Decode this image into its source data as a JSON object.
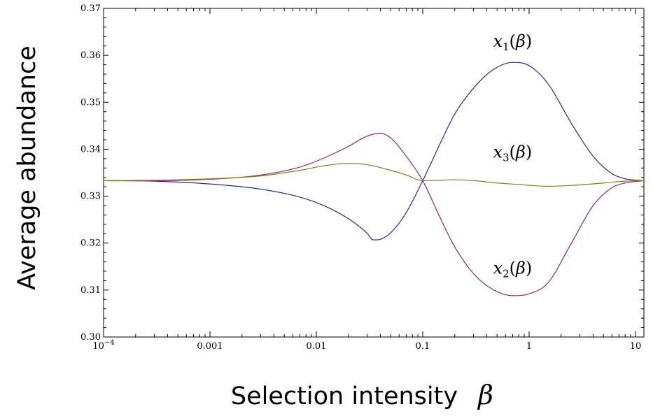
{
  "chart_data": {
    "type": "line",
    "xlabel": "Selection intensity",
    "xlabel_symbol": "β",
    "ylabel": "Average abundance",
    "xscale": "log",
    "xlim": [
      0.0001,
      12
    ],
    "ylim": [
      0.3,
      0.37
    ],
    "grid": false,
    "x_ticks": [
      {
        "value": 0.0001,
        "base": "10",
        "exp": "−4"
      },
      {
        "value": 0.001,
        "label": "0.001"
      },
      {
        "value": 0.01,
        "label": "0.01"
      },
      {
        "value": 0.1,
        "label": "0.1"
      },
      {
        "value": 1,
        "label": "1"
      },
      {
        "value": 10,
        "label": "10"
      }
    ],
    "y_ticks": [
      {
        "value": 0.3,
        "label": "0.30"
      },
      {
        "value": 0.31,
        "label": "0.31"
      },
      {
        "value": 0.32,
        "label": "0.32"
      },
      {
        "value": 0.33,
        "label": "0.33"
      },
      {
        "value": 0.34,
        "label": "0.34"
      },
      {
        "value": 0.35,
        "label": "0.35"
      },
      {
        "value": 0.36,
        "label": "0.36"
      },
      {
        "value": 0.37,
        "label": "0.37"
      }
    ],
    "series": [
      {
        "name": "x1(β)",
        "label_var": "x",
        "label_sub": "1",
        "label_arg": "β",
        "color": "#2a2a8c",
        "points": [
          [
            0.0001,
            0.3333
          ],
          [
            0.0003,
            0.3332
          ],
          [
            0.001,
            0.3326
          ],
          [
            0.003,
            0.3315
          ],
          [
            0.007,
            0.3298
          ],
          [
            0.012,
            0.3279
          ],
          [
            0.02,
            0.3252
          ],
          [
            0.03,
            0.3221
          ],
          [
            0.034,
            0.3207
          ],
          [
            0.04,
            0.3208
          ],
          [
            0.05,
            0.3222
          ],
          [
            0.07,
            0.3265
          ],
          [
            0.1,
            0.3333
          ],
          [
            0.15,
            0.3418
          ],
          [
            0.2,
            0.3475
          ],
          [
            0.3,
            0.353
          ],
          [
            0.45,
            0.3568
          ],
          [
            0.7,
            0.3585
          ],
          [
            1.0,
            0.3578
          ],
          [
            1.5,
            0.354
          ],
          [
            2.5,
            0.3455
          ],
          [
            4,
            0.3385
          ],
          [
            6,
            0.3348
          ],
          [
            8,
            0.3337
          ],
          [
            12,
            0.3333
          ]
        ]
      },
      {
        "name": "x2(β)",
        "label_var": "x",
        "label_sub": "2",
        "label_arg": "β",
        "color": "#8c2a6a",
        "points": [
          [
            0.0001,
            0.3333
          ],
          [
            0.0003,
            0.3333
          ],
          [
            0.001,
            0.3336
          ],
          [
            0.003,
            0.3345
          ],
          [
            0.007,
            0.3362
          ],
          [
            0.012,
            0.3382
          ],
          [
            0.02,
            0.3406
          ],
          [
            0.03,
            0.3428
          ],
          [
            0.04,
            0.3434
          ],
          [
            0.05,
            0.3424
          ],
          [
            0.07,
            0.3385
          ],
          [
            0.1,
            0.3333
          ],
          [
            0.15,
            0.3248
          ],
          [
            0.2,
            0.3192
          ],
          [
            0.3,
            0.3135
          ],
          [
            0.45,
            0.3102
          ],
          [
            0.7,
            0.3088
          ],
          [
            1.0,
            0.3092
          ],
          [
            1.5,
            0.3115
          ],
          [
            2.5,
            0.32
          ],
          [
            4,
            0.328
          ],
          [
            6,
            0.3318
          ],
          [
            8,
            0.3328
          ],
          [
            12,
            0.3333
          ]
        ]
      },
      {
        "name": "x3(β)",
        "label_var": "x",
        "label_sub": "3",
        "label_arg": "β",
        "color": "#8c7a22",
        "points": [
          [
            0.0001,
            0.3333
          ],
          [
            0.0003,
            0.3334
          ],
          [
            0.001,
            0.3337
          ],
          [
            0.003,
            0.3343
          ],
          [
            0.007,
            0.3355
          ],
          [
            0.012,
            0.3365
          ],
          [
            0.02,
            0.337
          ],
          [
            0.03,
            0.3367
          ],
          [
            0.05,
            0.3355
          ],
          [
            0.07,
            0.3345
          ],
          [
            0.1,
            0.3333
          ],
          [
            0.15,
            0.3334
          ],
          [
            0.2,
            0.3335
          ],
          [
            0.3,
            0.3333
          ],
          [
            0.5,
            0.3328
          ],
          [
            0.8,
            0.3325
          ],
          [
            1.5,
            0.3321
          ],
          [
            2.5,
            0.3323
          ],
          [
            5,
            0.3328
          ],
          [
            8,
            0.3332
          ],
          [
            12,
            0.3333
          ]
        ]
      }
    ],
    "annotations": [
      {
        "series": 0,
        "at_x": 0.7,
        "at_y": 0.3618
      },
      {
        "series": 2,
        "at_x": 0.7,
        "at_y": 0.3382
      },
      {
        "series": 1,
        "at_x": 0.7,
        "at_y": 0.3135
      }
    ]
  }
}
